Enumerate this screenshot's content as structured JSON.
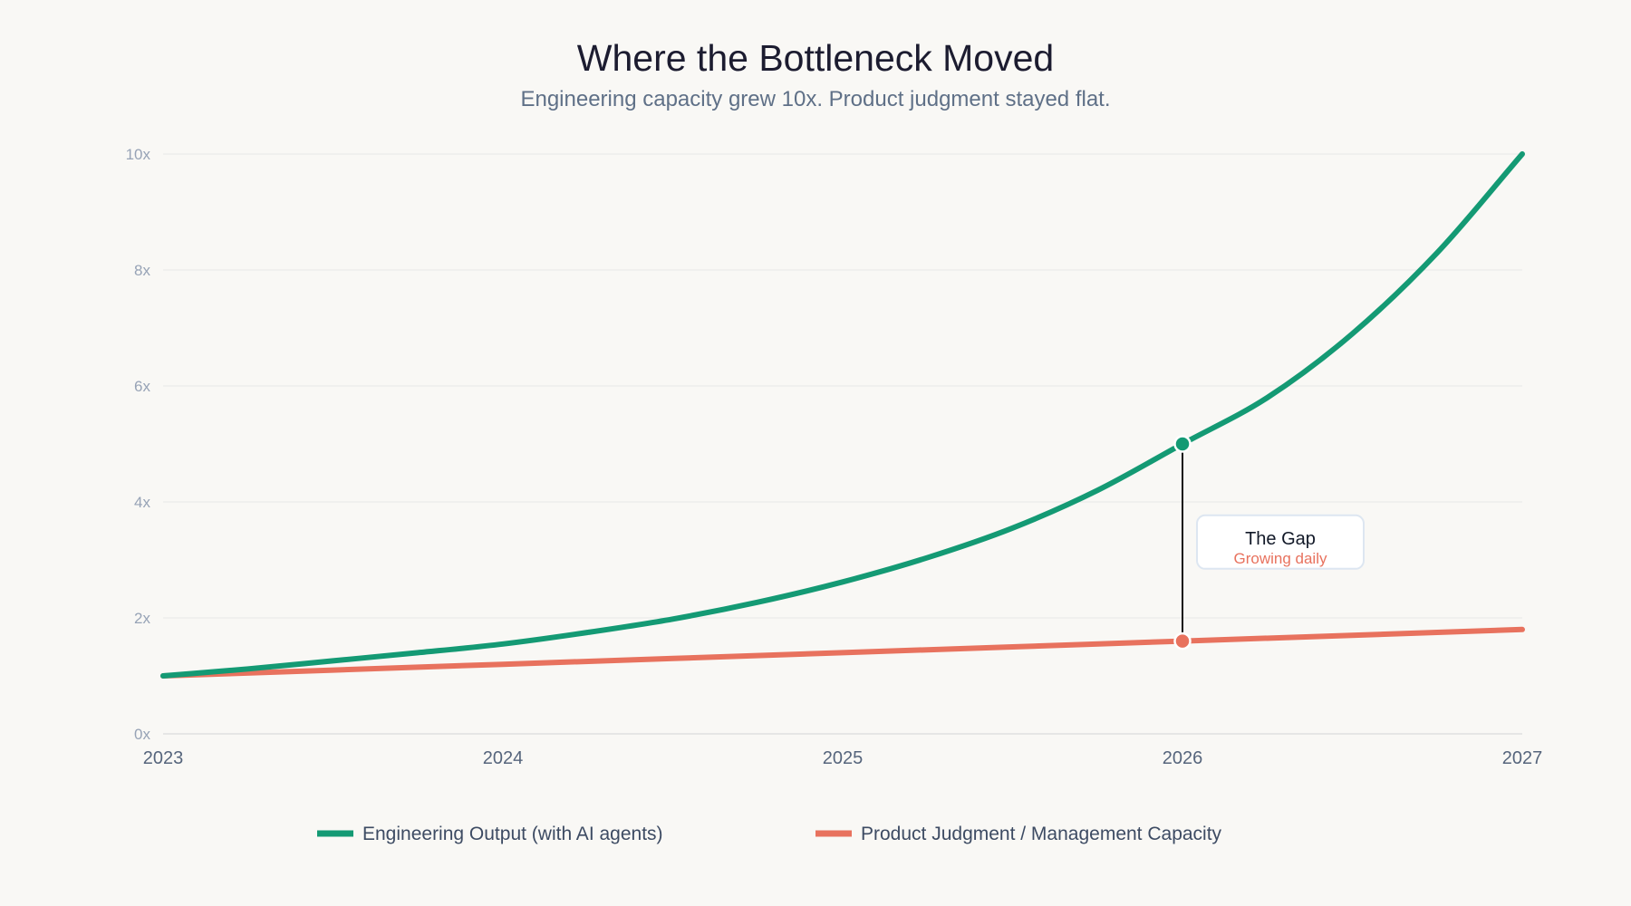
{
  "chart_data": {
    "type": "line",
    "title": "Where the Bottleneck Moved",
    "subtitle": "Engineering capacity grew 10x. Product judgment stayed flat.",
    "xlabel": "",
    "ylabel": "",
    "xlim": [
      2023,
      2027
    ],
    "ylim": [
      0,
      10
    ],
    "x_ticks": [
      2023,
      2024,
      2025,
      2026,
      2027
    ],
    "x_tick_labels": [
      "2023",
      "2024",
      "2025",
      "2026",
      "2027"
    ],
    "y_ticks": [
      0,
      2,
      4,
      6,
      8,
      10
    ],
    "y_tick_labels": [
      "0x",
      "2x",
      "4x",
      "6x",
      "8x",
      "10x"
    ],
    "grid": true,
    "legend_position": "bottom-center",
    "series": [
      {
        "name": "Engineering Output (with AI agents)",
        "color": "#149a74",
        "x": [
          2023,
          2023.25,
          2023.5,
          2023.75,
          2024,
          2024.25,
          2024.5,
          2024.75,
          2025,
          2025.25,
          2025.5,
          2025.75,
          2026,
          2026.25,
          2026.5,
          2026.75,
          2027
        ],
        "values": [
          1.0,
          1.12,
          1.26,
          1.4,
          1.55,
          1.75,
          1.98,
          2.27,
          2.62,
          3.04,
          3.55,
          4.2,
          5.0,
          5.8,
          6.9,
          8.3,
          10.0
        ]
      },
      {
        "name": "Product Judgment / Management Capacity",
        "color": "#e8725e",
        "x": [
          2023,
          2024,
          2025,
          2026,
          2027
        ],
        "values": [
          1.0,
          1.2,
          1.4,
          1.6,
          1.8
        ]
      }
    ],
    "annotation": {
      "x": 2026,
      "y_top": 5.0,
      "y_bottom": 1.6,
      "label": "The Gap",
      "sublabel": "Growing daily",
      "sublabel_color": "#e8725e",
      "line_color": "#111111"
    }
  }
}
